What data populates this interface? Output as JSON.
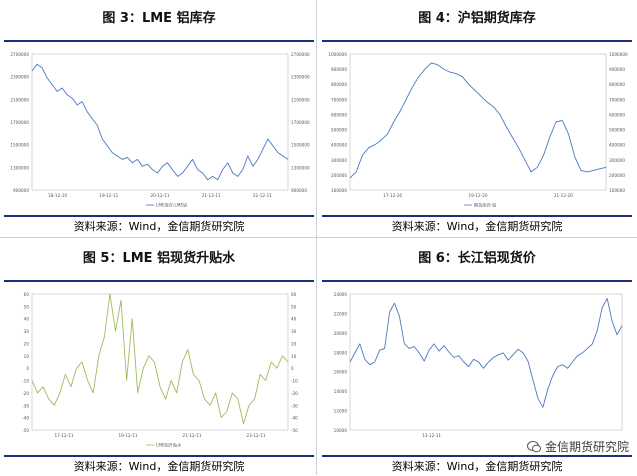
{
  "chart_data": [
    {
      "type": "line",
      "title": "图 3：LME 铝库存",
      "source": "资料来源：Wind，金信期货研究院",
      "x_ticks": [
        "18-12-10",
        "19-12-11",
        "20-12-11",
        "21-12-11",
        "22-12-11"
      ],
      "y_left_ticks": [
        "2700000",
        "2300000",
        "2100000",
        "1700000",
        "1500000",
        "1300000",
        "900000"
      ],
      "y_right_ticks": [
        "2700000",
        "2300000",
        "2100000",
        "1700000",
        "1500000",
        "1300000",
        "900000"
      ],
      "legend": "LME库存:LME铝",
      "ylim": [
        800000,
        2800000
      ],
      "series": [
        {
          "color": "#4a79c2",
          "values": [
            2550000,
            2650000,
            2600000,
            2450000,
            2350000,
            2250000,
            2300000,
            2200000,
            2150000,
            2050000,
            2100000,
            1950000,
            1850000,
            1750000,
            1550000,
            1450000,
            1350000,
            1300000,
            1250000,
            1280000,
            1200000,
            1250000,
            1150000,
            1180000,
            1100000,
            1050000,
            1150000,
            1200000,
            1100000,
            1000000,
            1050000,
            1150000,
            1250000,
            1100000,
            1050000,
            950000,
            1000000,
            950000,
            1100000,
            1200000,
            1050000,
            1000000,
            1100000,
            1300000,
            1150000,
            1250000,
            1400000,
            1550000,
            1450000,
            1350000,
            1300000,
            1250000
          ]
        }
      ]
    },
    {
      "type": "line",
      "title": "图 4：沪铝期货库存",
      "source": "资料来源：Wind，金信期货研究院",
      "x_ticks": [
        "17-12-20",
        "19-12-20",
        "21-12-20"
      ],
      "y_left_ticks": [
        "1000000",
        "900000",
        "800000",
        "700000",
        "600000",
        "500000",
        "400000",
        "300000",
        "200000",
        "100000"
      ],
      "y_right_ticks": [
        "1000000",
        "900000",
        "800000",
        "700000",
        "600000",
        "500000",
        "400000",
        "300000",
        "200000",
        "100000"
      ],
      "legend": "期货库存:铝",
      "ylim": [
        100000,
        1000000
      ],
      "series": [
        {
          "color": "#4a79c2",
          "values": [
            180000,
            220000,
            330000,
            380000,
            400000,
            430000,
            470000,
            550000,
            620000,
            700000,
            780000,
            850000,
            900000,
            940000,
            930000,
            900000,
            880000,
            870000,
            850000,
            800000,
            760000,
            720000,
            680000,
            650000,
            600000,
            520000,
            450000,
            380000,
            300000,
            220000,
            250000,
            330000,
            450000,
            550000,
            560000,
            470000,
            320000,
            230000,
            220000,
            230000,
            240000,
            250000
          ]
        }
      ]
    },
    {
      "type": "line",
      "title": "图 5：LME 铝现货升贴水",
      "source": "资料来源：Wind，金信期货研究院",
      "x_ticks": [
        "17-12-11",
        "19-12-11",
        "21-12-11",
        "23-12-11"
      ],
      "y_left_ticks": [
        "60",
        "50",
        "40",
        "30",
        "20",
        "10",
        "0",
        "-10",
        "-20",
        "-30",
        "-40",
        "-50"
      ],
      "y_right_ticks": [
        "60",
        "50",
        "40",
        "30",
        "20",
        "10",
        "0",
        "-10",
        "-20",
        "-30",
        "-40",
        "-50"
      ],
      "legend": "LME铝升贴水",
      "ylim": [
        -50,
        60
      ],
      "series": [
        {
          "color": "#9dbb5c",
          "values": [
            -10,
            -20,
            -15,
            -25,
            -30,
            -20,
            -5,
            -15,
            0,
            5,
            -10,
            -20,
            10,
            25,
            60,
            30,
            55,
            -10,
            40,
            -20,
            0,
            10,
            5,
            -15,
            -25,
            -10,
            -20,
            5,
            15,
            -5,
            -10,
            -25,
            -30,
            -20,
            -40,
            -35,
            -20,
            -25,
            -45,
            -30,
            -25,
            -5,
            -10,
            5,
            0,
            10,
            5
          ]
        }
      ]
    },
    {
      "type": "line",
      "title": "图 6：长江铝现货价",
      "source": "资料来源：Wind，金信期货研究院",
      "x_ticks": [
        "13-12-11"
      ],
      "y_left_ticks": [
        "24000",
        "22000",
        "20000",
        "18000",
        "16000",
        "14000",
        "12000",
        "10000"
      ],
      "ylim": [
        10000,
        25000
      ],
      "series": [
        {
          "color": "#4a79c2",
          "values": [
            17500,
            18500,
            19500,
            17800,
            17200,
            17500,
            18800,
            19000,
            23000,
            24000,
            22500,
            19500,
            19000,
            19200,
            18500,
            17600,
            18800,
            19500,
            18700,
            19300,
            18600,
            18000,
            18200,
            17500,
            17000,
            17800,
            17500,
            16800,
            17500,
            18000,
            18300,
            18500,
            17700,
            18300,
            18900,
            18500,
            17600,
            15500,
            13500,
            12500,
            14500,
            16000,
            17000,
            17200,
            16800,
            17500,
            18200,
            18500,
            19000,
            19500,
            21000,
            23500,
            24500,
            22000,
            20500,
            21500
          ]
        }
      ]
    }
  ],
  "watermark": {
    "text": "金信期货研究院"
  }
}
